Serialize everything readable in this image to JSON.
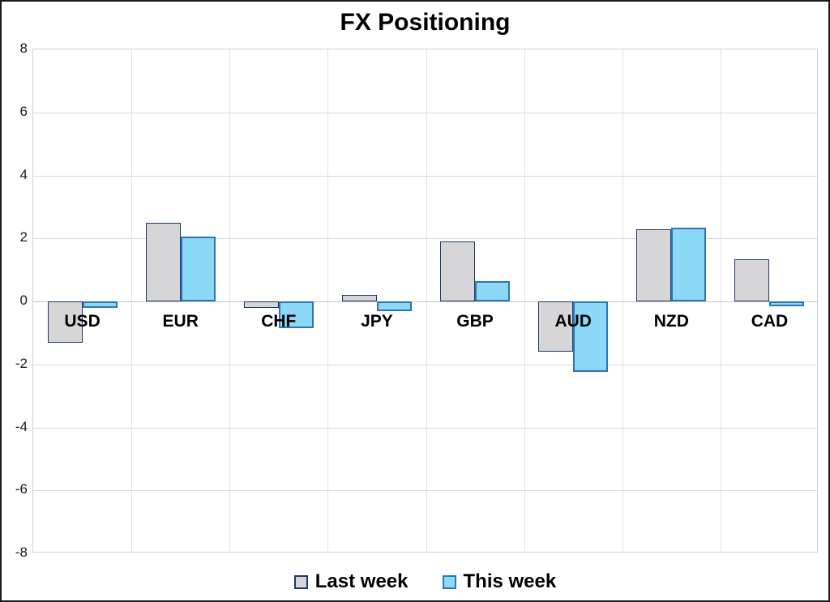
{
  "title": "FX Positioning",
  "chart_data": {
    "type": "bar",
    "title": "FX Positioning",
    "categories": [
      "USD",
      "EUR",
      "CHF",
      "JPY",
      "GBP",
      "AUD",
      "NZD",
      "CAD"
    ],
    "series": [
      {
        "name": "Last week",
        "fill_color": "#D6D6D8",
        "border_color": "#1F3864",
        "values": [
          -1.3,
          2.5,
          -0.2,
          0.2,
          1.9,
          -1.6,
          2.3,
          1.35
        ]
      },
      {
        "name": "This week",
        "fill_color": "#8BD9F6",
        "border_color": "#2E74B5",
        "values": [
          -0.2,
          2.05,
          -0.85,
          -0.3,
          0.65,
          -2.25,
          2.35,
          -0.15
        ]
      }
    ],
    "ylim": [
      -8,
      8
    ],
    "yticks": [
      8,
      6,
      4,
      2,
      0,
      -2,
      -4,
      -6,
      -8
    ],
    "grid": true,
    "legend_position": "bottom"
  }
}
